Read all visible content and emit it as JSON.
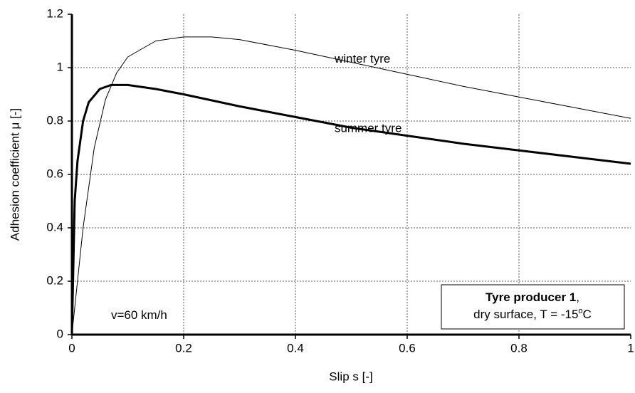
{
  "chart_data": {
    "type": "line",
    "xlabel": "Slip s [-]",
    "ylabel": "Adhesion coefficient μ [-]",
    "xlim": [
      0,
      1
    ],
    "ylim": [
      0,
      1.2
    ],
    "xticks": [
      0,
      0.2,
      0.4,
      0.6,
      0.8,
      1
    ],
    "yticks": [
      0,
      0.2,
      0.4,
      0.6,
      0.8,
      1,
      1.2
    ],
    "grid": true,
    "series": [
      {
        "name": "summer tyre",
        "color": "#000000",
        "x": [
          0,
          0.005,
          0.01,
          0.02,
          0.03,
          0.05,
          0.07,
          0.1,
          0.15,
          0.2,
          0.3,
          0.4,
          0.5,
          0.6,
          0.7,
          0.8,
          0.9,
          1.0
        ],
        "values": [
          0,
          0.5,
          0.65,
          0.8,
          0.87,
          0.92,
          0.935,
          0.935,
          0.92,
          0.9,
          0.855,
          0.815,
          0.775,
          0.745,
          0.715,
          0.69,
          0.665,
          0.64
        ]
      },
      {
        "name": "winter tyre",
        "color": "#000000",
        "x": [
          0,
          0.01,
          0.02,
          0.04,
          0.06,
          0.08,
          0.1,
          0.15,
          0.2,
          0.25,
          0.3,
          0.4,
          0.5,
          0.6,
          0.7,
          0.8,
          0.9,
          1.0
        ],
        "values": [
          0,
          0.2,
          0.4,
          0.7,
          0.88,
          0.98,
          1.04,
          1.1,
          1.115,
          1.115,
          1.105,
          1.065,
          1.02,
          0.975,
          0.93,
          0.89,
          0.85,
          0.81
        ]
      }
    ],
    "annotations": [
      {
        "text": "winter tyre",
        "x": 0.47,
        "y": 1.03
      },
      {
        "text": "summer tyre",
        "x": 0.47,
        "y": 0.77
      },
      {
        "text": "v=60 km/h",
        "x": 0.07,
        "y": 0.07
      }
    ],
    "info_box": {
      "title": "Tyre producer 1",
      "title_suffix": ",",
      "line2": "dry surface, T = -15",
      "sup": "o",
      "unit": "C"
    }
  }
}
